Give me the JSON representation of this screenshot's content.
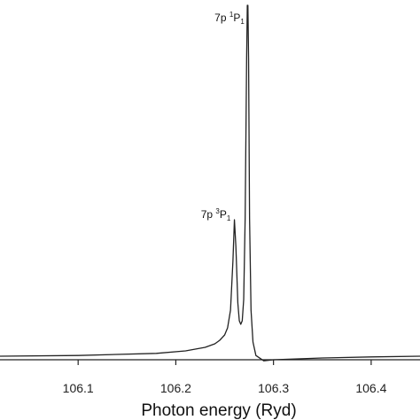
{
  "chart_data": {
    "type": "line",
    "title": "",
    "xlabel": "Photon energy (Ryd)",
    "ylabel": "",
    "xlim": [
      106.02,
      106.45
    ],
    "ylim": [
      0,
      1.0
    ],
    "x_ticks": [
      106.1,
      106.2,
      106.3,
      106.4
    ],
    "x_tick_labels": [
      "106.1",
      "106.2",
      "106.3",
      "106.4"
    ],
    "grid": false,
    "legend": "none",
    "line_color": "#222222",
    "series": [
      {
        "x": [
          106.02,
          106.1,
          106.18,
          106.21,
          106.23,
          106.24,
          106.245,
          106.25,
          106.253,
          106.256,
          106.2585,
          106.26,
          106.2615,
          106.2635,
          106.265,
          106.2665,
          106.268,
          106.2695,
          106.271,
          106.2725,
          106.2732,
          106.2738,
          106.2745,
          106.2755,
          106.277,
          106.279,
          106.282,
          106.29,
          106.3,
          106.35,
          106.4,
          106.45
        ],
        "y": [
          0.01,
          0.012,
          0.018,
          0.025,
          0.035,
          0.045,
          0.055,
          0.07,
          0.09,
          0.14,
          0.28,
          0.395,
          0.32,
          0.16,
          0.11,
          0.1,
          0.11,
          0.17,
          0.4,
          0.85,
          1.0,
          1.0,
          0.85,
          0.4,
          0.14,
          0.05,
          0.012,
          -0.003,
          0.0,
          0.005,
          0.008,
          0.01
        ]
      }
    ],
    "annotations": [
      {
        "base": "7p ",
        "sup": "3",
        "main": "P",
        "sub": "1",
        "x": 106.258,
        "y": 0.41
      },
      {
        "base": "7p ",
        "sup": "1",
        "main": "P",
        "sub": "1",
        "x": 106.272,
        "y": 0.965
      }
    ]
  }
}
